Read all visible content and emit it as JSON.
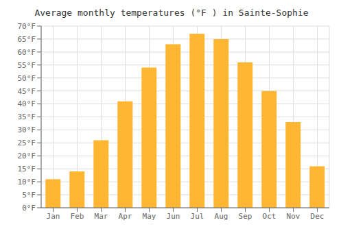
{
  "chart_data": {
    "type": "bar",
    "title": "Average monthly temperatures (°F ) in Sainte-Sophie",
    "categories": [
      "Jan",
      "Feb",
      "Mar",
      "Apr",
      "May",
      "Jun",
      "Jul",
      "Aug",
      "Sep",
      "Oct",
      "Nov",
      "Dec"
    ],
    "values": [
      11,
      14,
      26,
      41,
      54,
      63,
      67,
      65,
      56,
      45,
      33,
      16
    ],
    "color": "#FFB733",
    "ylim": [
      0,
      70
    ],
    "yticks": [
      {
        "value": 0,
        "label": "0°F"
      },
      {
        "value": 5,
        "label": "5°F"
      },
      {
        "value": 10,
        "label": "10°F"
      },
      {
        "value": 15,
        "label": "15°F"
      },
      {
        "value": 20,
        "label": "20°F"
      },
      {
        "value": 25,
        "label": "25°F"
      },
      {
        "value": 30,
        "label": "30°F"
      },
      {
        "value": 35,
        "label": "35°F"
      },
      {
        "value": 40,
        "label": "40°F"
      },
      {
        "value": 45,
        "label": "45°F"
      },
      {
        "value": 50,
        "label": "50°F"
      },
      {
        "value": 55,
        "label": "55°F"
      },
      {
        "value": 60,
        "label": "60°F"
      },
      {
        "value": 65,
        "label": "65°F"
      },
      {
        "value": 70,
        "label": "70°F"
      }
    ],
    "grid": true
  }
}
